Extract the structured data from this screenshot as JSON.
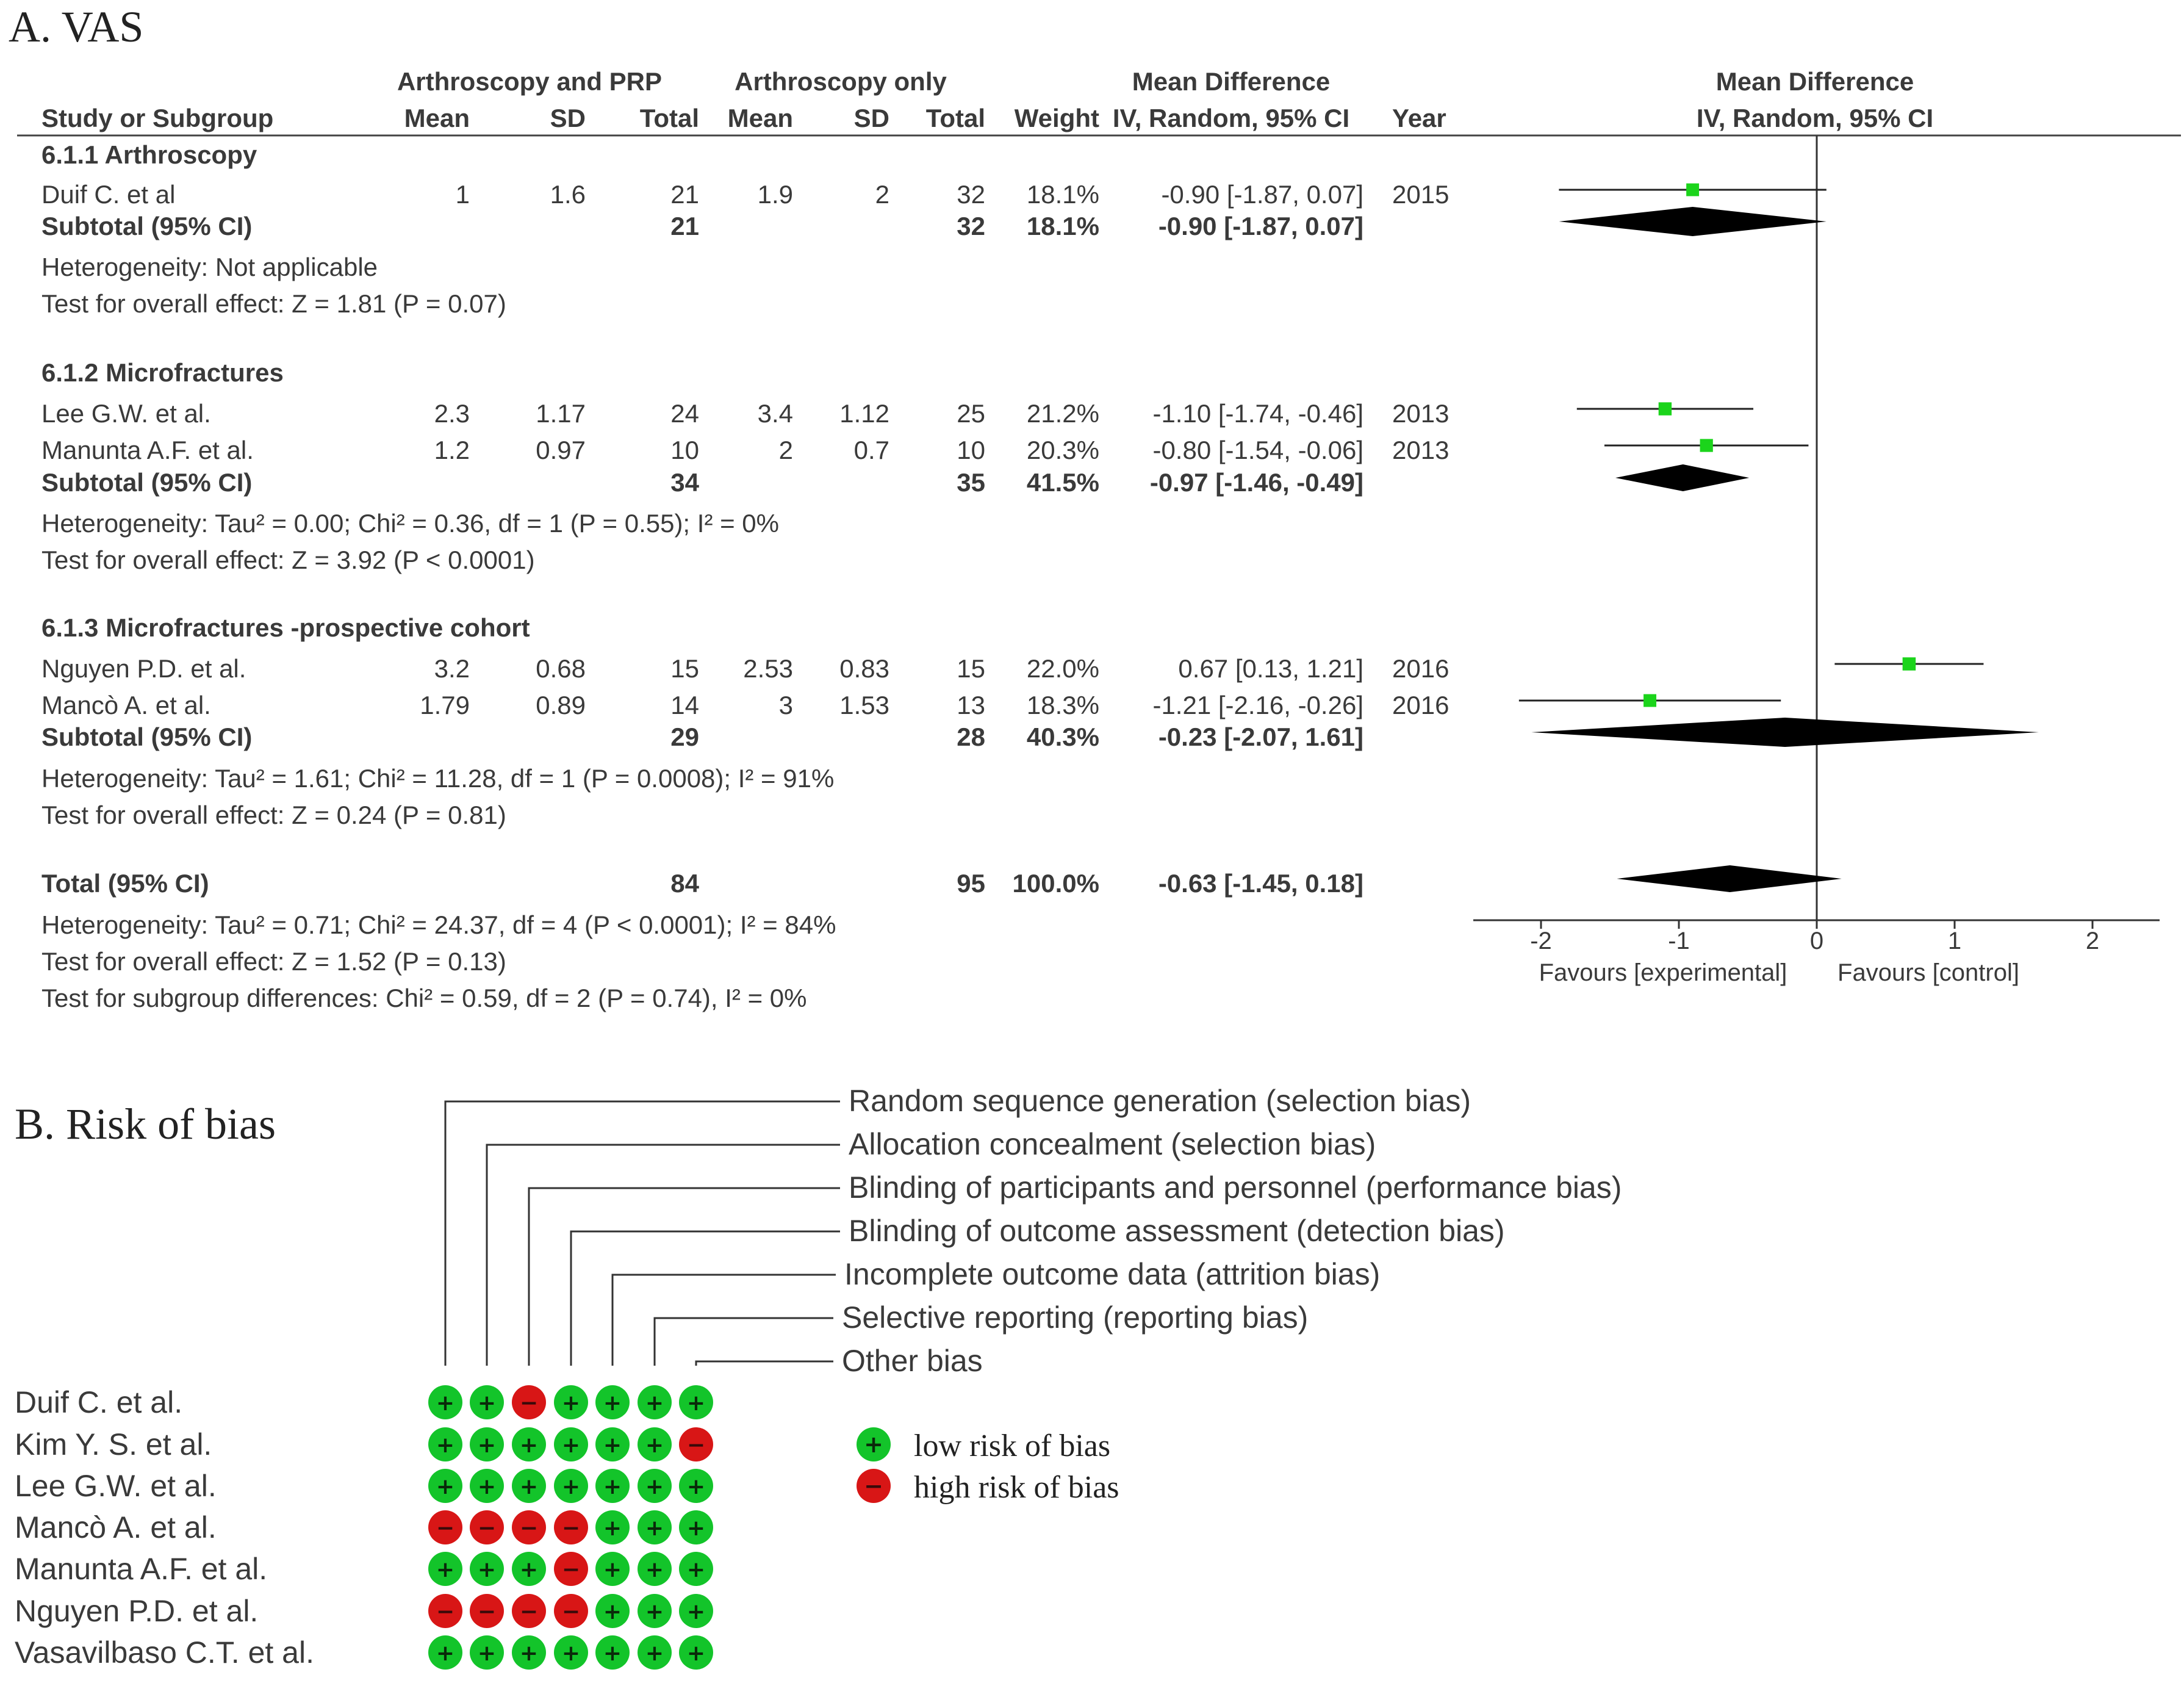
{
  "panel_a": {
    "title": "A. VAS",
    "headers": {
      "group_exp": "Arthroscopy and PRP",
      "group_ctrl": "Arthroscopy only",
      "md_top": "Mean Difference",
      "study": "Study or Subgroup",
      "mean": "Mean",
      "sd": "SD",
      "total": "Total",
      "weight": "Weight",
      "md_ci": "IV, Random, 95% CI",
      "year": "Year",
      "plot_top": "Mean Difference",
      "plot_ci": "IV, Random, 95% CI"
    },
    "subgroups": [
      {
        "title": "6.1.1 Arthroscopy",
        "studies": [
          {
            "name": "Duif C. et al",
            "m1": "1",
            "sd1": "1.6",
            "n1": "21",
            "m2": "1.9",
            "sd2": "2",
            "n2": "32",
            "weight": "18.1%",
            "ci": "-0.90 [-1.87, 0.07]",
            "year": "2015"
          }
        ],
        "subtotal": {
          "label": "Subtotal (95% CI)",
          "n1": "21",
          "n2": "32",
          "weight": "18.1%",
          "ci": "-0.90 [-1.87, 0.07]"
        },
        "notes": [
          "Heterogeneity: Not applicable",
          "Test for overall effect: Z = 1.81 (P = 0.07)"
        ]
      },
      {
        "title": "6.1.2 Microfractures",
        "studies": [
          {
            "name": "Lee G.W. et al.",
            "m1": "2.3",
            "sd1": "1.17",
            "n1": "24",
            "m2": "3.4",
            "sd2": "1.12",
            "n2": "25",
            "weight": "21.2%",
            "ci": "-1.10 [-1.74, -0.46]",
            "year": "2013"
          },
          {
            "name": "Manunta A.F. et al.",
            "m1": "1.2",
            "sd1": "0.97",
            "n1": "10",
            "m2": "2",
            "sd2": "0.7",
            "n2": "10",
            "weight": "20.3%",
            "ci": "-0.80 [-1.54, -0.06]",
            "year": "2013"
          }
        ],
        "subtotal": {
          "label": "Subtotal (95% CI)",
          "n1": "34",
          "n2": "35",
          "weight": "41.5%",
          "ci": "-0.97 [-1.46, -0.49]"
        },
        "notes": [
          "Heterogeneity: Tau² = 0.00; Chi² = 0.36, df = 1 (P = 0.55); I² = 0%",
          "Test for overall effect: Z = 3.92 (P < 0.0001)"
        ]
      },
      {
        "title": "6.1.3 Microfractures -prospective cohort",
        "studies": [
          {
            "name": "Nguyen P.D. et al.",
            "m1": "3.2",
            "sd1": "0.68",
            "n1": "15",
            "m2": "2.53",
            "sd2": "0.83",
            "n2": "15",
            "weight": "22.0%",
            "ci": "0.67 [0.13, 1.21]",
            "year": "2016"
          },
          {
            "name": "Mancò A. et al.",
            "m1": "1.79",
            "sd1": "0.89",
            "n1": "14",
            "m2": "3",
            "sd2": "1.53",
            "n2": "13",
            "weight": "18.3%",
            "ci": "-1.21 [-2.16, -0.26]",
            "year": "2016"
          }
        ],
        "subtotal": {
          "label": "Subtotal (95% CI)",
          "n1": "29",
          "n2": "28",
          "weight": "40.3%",
          "ci": "-0.23 [-2.07, 1.61]"
        },
        "notes": [
          "Heterogeneity: Tau² = 1.61; Chi² = 11.28, df = 1 (P = 0.0008); I² = 91%",
          "Test for overall effect: Z = 0.24 (P = 0.81)"
        ]
      }
    ],
    "total": {
      "label": "Total (95% CI)",
      "n1": "84",
      "n2": "95",
      "weight": "100.0%",
      "ci": "-0.63 [-1.45, 0.18]"
    },
    "total_notes": [
      "Heterogeneity: Tau² = 0.71; Chi² = 24.37, df = 4 (P < 0.0001); I² = 84%",
      "Test for overall effect: Z = 1.52 (P = 0.13)",
      "Test for subgroup differences: Chi² = 0.59, df = 2 (P = 0.74), I² = 0%"
    ],
    "axis_labels": {
      "left": "Favours [experimental]",
      "right": "Favours [control]"
    }
  },
  "chart_data": {
    "type": "forest",
    "title": "A. VAS",
    "x_axis": {
      "ticks": [
        -2,
        -1,
        0,
        1,
        2
      ],
      "range": [
        -2,
        2
      ],
      "left_label": "Favours [experimental]",
      "right_label": "Favours [control]"
    },
    "studies": [
      {
        "label": "Duif C. et al",
        "md": -0.9,
        "lo": -1.87,
        "hi": 0.07,
        "weight": 18.1
      },
      {
        "label": "Lee G.W. et al.",
        "md": -1.1,
        "lo": -1.74,
        "hi": -0.46,
        "weight": 21.2
      },
      {
        "label": "Manunta A.F. et al.",
        "md": -0.8,
        "lo": -1.54,
        "hi": -0.06,
        "weight": 20.3
      },
      {
        "label": "Nguyen P.D. et al.",
        "md": 0.67,
        "lo": 0.13,
        "hi": 1.21,
        "weight": 22.0
      },
      {
        "label": "Mancò A. et al.",
        "md": -1.21,
        "lo": -2.16,
        "hi": -0.26,
        "weight": 18.3
      }
    ],
    "pooled": [
      {
        "label": "Subtotal 6.1.1",
        "md": -0.9,
        "lo": -1.87,
        "hi": 0.07
      },
      {
        "label": "Subtotal 6.1.2",
        "md": -0.97,
        "lo": -1.46,
        "hi": -0.49
      },
      {
        "label": "Subtotal 6.1.3",
        "md": -0.23,
        "lo": -2.07,
        "hi": 1.61
      },
      {
        "label": "Total",
        "md": -0.63,
        "lo": -1.45,
        "hi": 0.18
      }
    ],
    "risk_of_bias": {
      "domains": [
        "Random sequence generation (selection bias)",
        "Allocation concealment (selection bias)",
        "Blinding of participants and personnel (performance bias)",
        "Blinding of outcome assessment (detection bias)",
        "Incomplete outcome data (attrition bias)",
        "Selective reporting (reporting bias)",
        "Other bias"
      ],
      "studies": [
        "Duif C. et al.",
        "Kim Y. S. et al.",
        "Lee G.W. et al.",
        "Mancò A. et al.",
        "Manunta A.F. et al.",
        "Nguyen P.D. et al.",
        "Vasavilbaso C.T. et al."
      ],
      "matrix": [
        [
          "+",
          "+",
          "-",
          "+",
          "+",
          "+",
          "+"
        ],
        [
          "+",
          "+",
          "+",
          "+",
          "+",
          "+",
          "-"
        ],
        [
          "+",
          "+",
          "+",
          "+",
          "+",
          "+",
          "+"
        ],
        [
          "-",
          "-",
          "-",
          "-",
          "+",
          "+",
          "+"
        ],
        [
          "+",
          "+",
          "+",
          "-",
          "+",
          "+",
          "+"
        ],
        [
          "-",
          "-",
          "-",
          "-",
          "+",
          "+",
          "+"
        ],
        [
          "+",
          "+",
          "+",
          "+",
          "+",
          "+",
          "+"
        ]
      ]
    }
  },
  "panel_b": {
    "title": "B. Risk of bias",
    "legend": {
      "low": "low risk of bias",
      "high": "high risk of bias",
      "low_symbol": "+",
      "high_symbol": "−"
    },
    "colors": {
      "low": "#13c42a",
      "high": "#d81616",
      "marker": "#1bd41b",
      "text": "#3a3a3a"
    }
  }
}
